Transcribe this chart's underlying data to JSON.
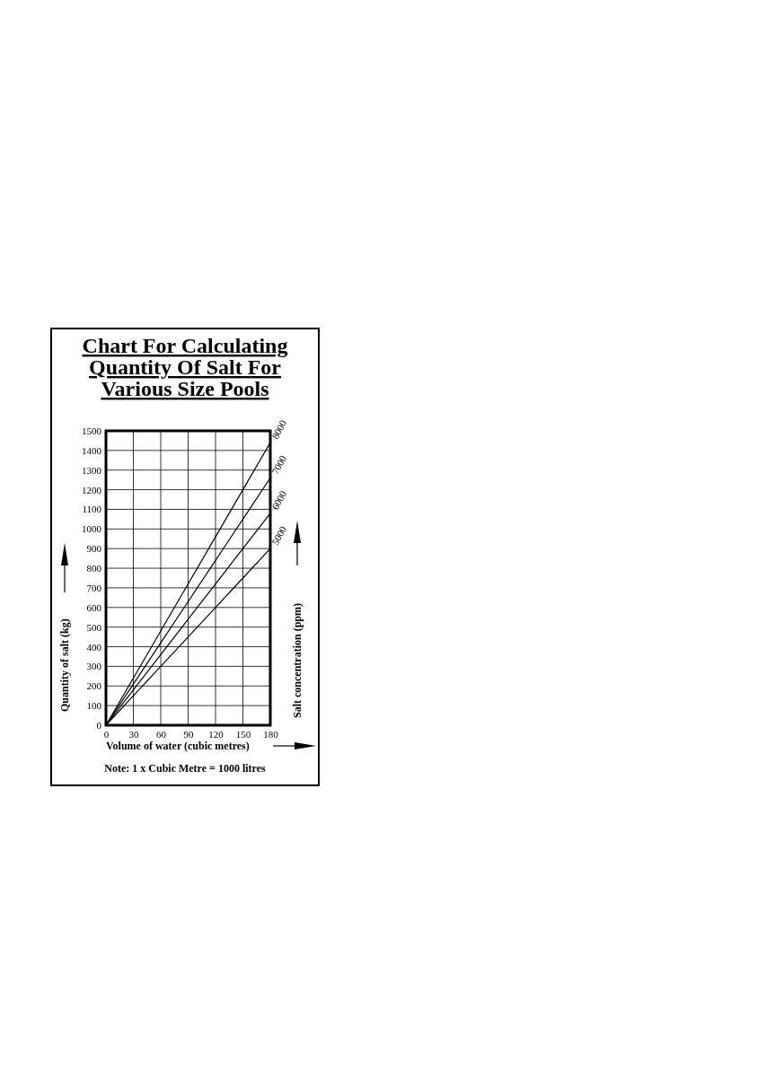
{
  "chart_data": {
    "type": "line",
    "title": "Chart For Calculating Quantity Of Salt For Various Size Pools",
    "xlabel": "Volume of water (cubic metres)",
    "ylabel": "Quantity of salt (kg)",
    "legend_title": "Salt concentration (ppm)",
    "annotations": [
      "Note: 1 x Cubic Metre = 1000 litres"
    ],
    "x": [
      0,
      30,
      60,
      90,
      120,
      150,
      180
    ],
    "series": [
      {
        "name": "8000",
        "color": "#000000",
        "values": [
          0,
          240,
          480,
          720,
          960,
          1200,
          1440
        ]
      },
      {
        "name": "7000",
        "color": "#000000",
        "values": [
          0,
          210,
          420,
          630,
          840,
          1050,
          1260
        ]
      },
      {
        "name": "6000",
        "color": "#000000",
        "values": [
          0,
          180,
          360,
          540,
          720,
          900,
          1080
        ]
      },
      {
        "name": "5000",
        "color": "#000000",
        "values": [
          0,
          150,
          300,
          450,
          600,
          750,
          900
        ]
      }
    ],
    "xlim": [
      0,
      180
    ],
    "xticks": [
      0,
      30,
      60,
      90,
      120,
      150,
      180
    ],
    "ylim": [
      0,
      1500
    ],
    "yticks": [
      0,
      100,
      200,
      300,
      400,
      500,
      600,
      700,
      800,
      900,
      1000,
      1100,
      1200,
      1300,
      1400,
      1500
    ],
    "grid": true,
    "legend": "right",
    "marker": "none",
    "line_style": "solid"
  }
}
